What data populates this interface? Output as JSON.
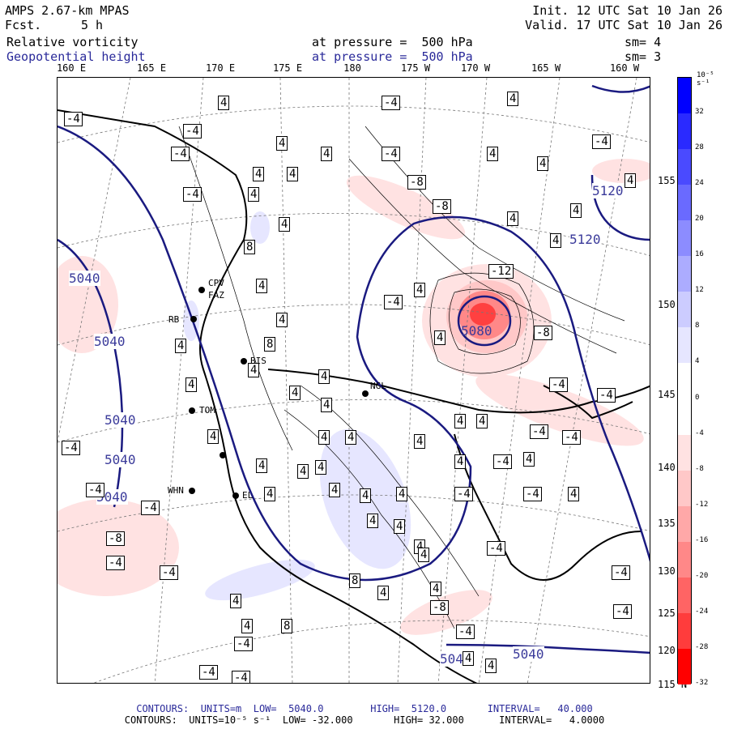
{
  "header": {
    "model": "AMPS 2.67-km MPAS",
    "fcst_label": "Fcst.",
    "fcst_value": "5 h",
    "init": "Init. 12 UTC Sat 10 Jan 26",
    "valid": "Valid. 17 UTC Sat 10 Jan 26",
    "field1_name": "Relative vorticity",
    "field1_level": "at pressure =  500 hPa",
    "field1_sm": "sm= 4",
    "field2_name": "Geopotential height",
    "field2_level": "at pressure =  500 hPa",
    "field2_sm": "sm= 3"
  },
  "longitude_labels": [
    "160 E",
    "165 E",
    "170 E",
    "175 E",
    "180",
    "175 W",
    "170 W",
    "165 W",
    "160 W"
  ],
  "latitude_labels": [
    "155 N",
    "150 N",
    "145 N",
    "140 N",
    "135 N",
    "130 N",
    "125 N",
    "120 N",
    "115 N"
  ],
  "colorbar": {
    "unit": "10⁻⁵ s⁻¹",
    "labels": [
      "32",
      "28",
      "24",
      "20",
      "16",
      "12",
      "8",
      "4",
      "0",
      "-4",
      "-8",
      "-12",
      "-16",
      "-20",
      "-24",
      "-28",
      "-32"
    ],
    "colors": [
      "#0000ff",
      "#2a2aff",
      "#4a4aff",
      "#6a6aff",
      "#8c8cff",
      "#acacff",
      "#ccccff",
      "#e6e6ff",
      "#ffffff",
      "#ffffff",
      "#ffe2e2",
      "#ffc8c8",
      "#ffa8a8",
      "#ff8888",
      "#ff6464",
      "#ff3c3c",
      "#ff0000"
    ]
  },
  "stations": [
    "CPV",
    "FAZ",
    "RB",
    "BIS",
    "NGL",
    "TOM",
    "WHN",
    "EL"
  ],
  "contour_values": {
    "height": [
      "5040",
      "5040",
      "5040",
      "5040",
      "5040",
      "5040",
      "5080",
      "5120",
      "5120",
      "5040",
      "5040"
    ],
    "vort": [
      "4",
      "-4",
      "8",
      "-8",
      "-12"
    ]
  },
  "footer": {
    "line1": "CONTOURS:  UNITS=m  LOW=  5040.0        HIGH=  5120.0       INTERVAL=   40.000",
    "line2": "CONTOURS:  UNITS=10⁻⁵ s⁻¹  LOW= -32.000       HIGH= 32.000      INTERVAL=   4.0000"
  },
  "colors": {
    "height_contour": "#1a1a80",
    "coast": "#000000",
    "label_blue": "#3a3a9a"
  }
}
